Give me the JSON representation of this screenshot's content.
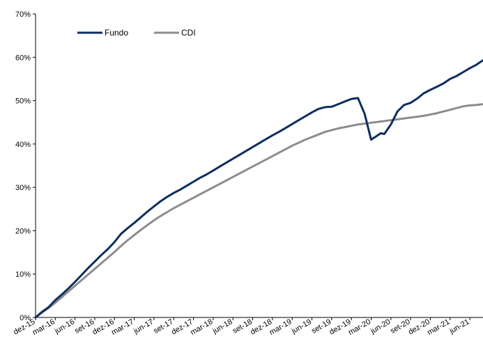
{
  "chart_data": {
    "type": "line",
    "title": "",
    "xlabel": "",
    "ylabel": "",
    "ylim": [
      0,
      70
    ],
    "y_ticks": [
      "0%",
      "10%",
      "20%",
      "30%",
      "40%",
      "50%",
      "60%",
      "70%"
    ],
    "x_ticks": [
      "dez-15",
      "mar-16",
      "jun-16",
      "set-16",
      "dez-16",
      "mar-17",
      "jun-17",
      "set-17",
      "dez-17",
      "mar-18",
      "jun-18",
      "set-18",
      "dez-18",
      "mar-19",
      "jun-19",
      "set-19",
      "dez-19",
      "mar-20",
      "jun-20",
      "set-20",
      "dez-20",
      "mar-21",
      "jun-21"
    ],
    "grid": false,
    "legend_position": "top-left",
    "x_months": [
      0,
      1,
      2,
      3,
      4,
      5,
      6,
      7,
      8,
      9,
      10,
      11,
      12,
      13,
      14,
      15,
      16,
      17,
      18,
      19,
      20,
      21,
      22,
      23,
      24,
      25,
      26,
      27,
      28,
      29,
      30,
      31,
      32,
      33,
      34,
      35,
      36,
      37,
      38,
      39,
      40,
      41,
      42,
      43,
      44,
      45,
      46,
      47,
      48,
      49,
      50,
      51,
      51.5,
      52,
      52.5,
      53,
      54,
      55,
      56,
      57,
      58,
      59,
      60,
      61,
      62,
      63,
      64,
      65,
      66,
      67,
      68
    ],
    "series": [
      {
        "name": "Fundo",
        "color": "#0b2d62",
        "values": [
          0,
          1.3,
          2.4,
          4.0,
          5.3,
          6.7,
          8.2,
          9.8,
          11.4,
          12.9,
          14.4,
          15.8,
          17.4,
          19.3,
          20.6,
          21.8,
          23.1,
          24.4,
          25.6,
          26.8,
          27.8,
          28.7,
          29.5,
          30.4,
          31.3,
          32.2,
          33.0,
          33.9,
          34.8,
          35.7,
          36.6,
          37.5,
          38.4,
          39.3,
          40.2,
          41.1,
          42.0,
          42.8,
          43.7,
          44.6,
          45.5,
          46.4,
          47.3,
          48.1,
          48.5,
          48.6,
          49.2,
          49.8,
          50.4,
          50.6,
          47.0,
          41.0,
          41.5,
          42.0,
          42.5,
          42.3,
          44.5,
          47.5,
          49.0,
          49.5,
          50.5,
          51.7,
          52.5,
          53.2,
          54.0,
          55.0,
          55.7,
          56.6,
          57.5,
          58.3,
          59.3
        ]
      },
      {
        "name": "CDI",
        "color": "#8c8c8c",
        "values": [
          0,
          1.1,
          2.2,
          3.4,
          4.7,
          6.0,
          7.3,
          8.6,
          9.9,
          11.2,
          12.5,
          13.8,
          15.1,
          16.5,
          17.8,
          19.0,
          20.2,
          21.3,
          22.4,
          23.4,
          24.3,
          25.2,
          26.0,
          26.8,
          27.6,
          28.4,
          29.2,
          30.0,
          30.8,
          31.6,
          32.4,
          33.2,
          34.0,
          34.8,
          35.6,
          36.4,
          37.2,
          38.0,
          38.8,
          39.6,
          40.3,
          41.0,
          41.6,
          42.2,
          42.8,
          43.2,
          43.6,
          43.9,
          44.2,
          44.5,
          44.7,
          44.9,
          45.0,
          45.1,
          45.2,
          45.3,
          45.5,
          45.7,
          45.9,
          46.1,
          46.3,
          46.5,
          46.8,
          47.1,
          47.5,
          47.9,
          48.3,
          48.7,
          48.9,
          49.0,
          49.2
        ]
      }
    ]
  }
}
